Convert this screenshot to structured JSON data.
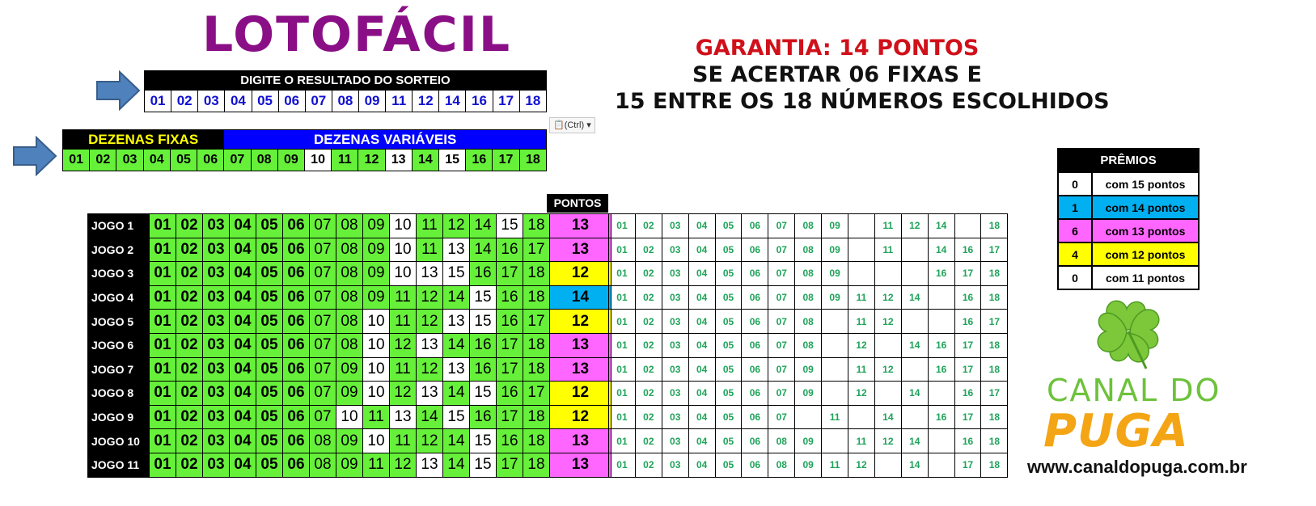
{
  "title": "LOTOFÁCIL",
  "result": {
    "header": "DIGITE O RESULTADO DO SORTEIO",
    "numbers": [
      "01",
      "02",
      "03",
      "04",
      "05",
      "06",
      "07",
      "08",
      "09",
      "11",
      "12",
      "14",
      "16",
      "17",
      "18"
    ]
  },
  "paste_options": {
    "label": "(Ctrl)"
  },
  "selection": {
    "fixed_label": "DEZENAS FIXAS",
    "variable_label": "DEZENAS VARIÁVEIS",
    "numbers": [
      "01",
      "02",
      "03",
      "04",
      "05",
      "06",
      "07",
      "08",
      "09",
      "10",
      "11",
      "12",
      "13",
      "14",
      "15",
      "16",
      "17",
      "18"
    ],
    "missed": [
      "10",
      "13",
      "15"
    ]
  },
  "guarantee": {
    "line1": "GARANTIA: 14 PONTOS",
    "line2": "SE ACERTAR 06 FIXAS E",
    "line3": "15 ENTRE OS 18 NÚMEROS ESCOLHIDOS"
  },
  "points_header": "PONTOS",
  "games": [
    {
      "label": "JOGO 1",
      "numbers": [
        "01",
        "02",
        "03",
        "04",
        "05",
        "06",
        "07",
        "08",
        "09",
        "10",
        "11",
        "12",
        "14",
        "15",
        "18"
      ],
      "points": "13",
      "hits": [
        "01",
        "02",
        "03",
        "04",
        "05",
        "06",
        "07",
        "08",
        "09",
        "",
        "11",
        "12",
        "14",
        "",
        "18"
      ]
    },
    {
      "label": "JOGO 2",
      "numbers": [
        "01",
        "02",
        "03",
        "04",
        "05",
        "06",
        "07",
        "08",
        "09",
        "10",
        "11",
        "13",
        "14",
        "16",
        "17"
      ],
      "points": "13",
      "hits": [
        "01",
        "02",
        "03",
        "04",
        "05",
        "06",
        "07",
        "08",
        "09",
        "",
        "11",
        "",
        "14",
        "16",
        "17"
      ]
    },
    {
      "label": "JOGO 3",
      "numbers": [
        "01",
        "02",
        "03",
        "04",
        "05",
        "06",
        "07",
        "08",
        "09",
        "10",
        "13",
        "15",
        "16",
        "17",
        "18"
      ],
      "points": "12",
      "hits": [
        "01",
        "02",
        "03",
        "04",
        "05",
        "06",
        "07",
        "08",
        "09",
        "",
        "",
        "",
        "16",
        "17",
        "18"
      ]
    },
    {
      "label": "JOGO 4",
      "numbers": [
        "01",
        "02",
        "03",
        "04",
        "05",
        "06",
        "07",
        "08",
        "09",
        "11",
        "12",
        "14",
        "15",
        "16",
        "18"
      ],
      "points": "14",
      "hits": [
        "01",
        "02",
        "03",
        "04",
        "05",
        "06",
        "07",
        "08",
        "09",
        "11",
        "12",
        "14",
        "",
        "16",
        "18"
      ]
    },
    {
      "label": "JOGO 5",
      "numbers": [
        "01",
        "02",
        "03",
        "04",
        "05",
        "06",
        "07",
        "08",
        "10",
        "11",
        "12",
        "13",
        "15",
        "16",
        "17"
      ],
      "points": "12",
      "hits": [
        "01",
        "02",
        "03",
        "04",
        "05",
        "06",
        "07",
        "08",
        "",
        "11",
        "12",
        "",
        "",
        "16",
        "17"
      ]
    },
    {
      "label": "JOGO 6",
      "numbers": [
        "01",
        "02",
        "03",
        "04",
        "05",
        "06",
        "07",
        "08",
        "10",
        "12",
        "13",
        "14",
        "16",
        "17",
        "18"
      ],
      "points": "13",
      "hits": [
        "01",
        "02",
        "03",
        "04",
        "05",
        "06",
        "07",
        "08",
        "",
        "12",
        "",
        "14",
        "16",
        "17",
        "18"
      ]
    },
    {
      "label": "JOGO 7",
      "numbers": [
        "01",
        "02",
        "03",
        "04",
        "05",
        "06",
        "07",
        "09",
        "10",
        "11",
        "12",
        "13",
        "16",
        "17",
        "18"
      ],
      "points": "13",
      "hits": [
        "01",
        "02",
        "03",
        "04",
        "05",
        "06",
        "07",
        "09",
        "",
        "11",
        "12",
        "",
        "16",
        "17",
        "18"
      ]
    },
    {
      "label": "JOGO 8",
      "numbers": [
        "01",
        "02",
        "03",
        "04",
        "05",
        "06",
        "07",
        "09",
        "10",
        "12",
        "13",
        "14",
        "15",
        "16",
        "17"
      ],
      "points": "12",
      "hits": [
        "01",
        "02",
        "03",
        "04",
        "05",
        "06",
        "07",
        "09",
        "",
        "12",
        "",
        "14",
        "",
        "16",
        "17"
      ]
    },
    {
      "label": "JOGO 9",
      "numbers": [
        "01",
        "02",
        "03",
        "04",
        "05",
        "06",
        "07",
        "10",
        "11",
        "13",
        "14",
        "15",
        "16",
        "17",
        "18"
      ],
      "points": "12",
      "hits": [
        "01",
        "02",
        "03",
        "04",
        "05",
        "06",
        "07",
        "",
        "11",
        "",
        "14",
        "",
        "16",
        "17",
        "18"
      ]
    },
    {
      "label": "JOGO 10",
      "numbers": [
        "01",
        "02",
        "03",
        "04",
        "05",
        "06",
        "08",
        "09",
        "10",
        "11",
        "12",
        "14",
        "15",
        "16",
        "18"
      ],
      "points": "13",
      "hits": [
        "01",
        "02",
        "03",
        "04",
        "05",
        "06",
        "08",
        "09",
        "",
        "11",
        "12",
        "14",
        "",
        "16",
        "18"
      ]
    },
    {
      "label": "JOGO 11",
      "numbers": [
        "01",
        "02",
        "03",
        "04",
        "05",
        "06",
        "08",
        "09",
        "11",
        "12",
        "13",
        "14",
        "15",
        "17",
        "18"
      ],
      "points": "13",
      "hits": [
        "01",
        "02",
        "03",
        "04",
        "05",
        "06",
        "08",
        "09",
        "11",
        "12",
        "",
        "14",
        "",
        "17",
        "18"
      ]
    }
  ],
  "points_colors": {
    "14": "#00b0f0",
    "13": "#ff66ff",
    "12": "#ffff00"
  },
  "prizes": {
    "header": "PRÊMIOS",
    "rows": [
      {
        "count": "0",
        "label": "com 15 pontos",
        "color": "#ffffff"
      },
      {
        "count": "1",
        "label": "com 14 pontos",
        "color": "#00b0f0"
      },
      {
        "count": "6",
        "label": "com 13 pontos",
        "color": "#ff66ff"
      },
      {
        "count": "4",
        "label": "com 12 pontos",
        "color": "#ffff00"
      },
      {
        "count": "0",
        "label": "com 11 pontos",
        "color": "#ffffff"
      }
    ]
  },
  "logo": {
    "line1": "CANAL DO",
    "line2": "PUGA",
    "url": "www.canaldopuga.com.br"
  }
}
